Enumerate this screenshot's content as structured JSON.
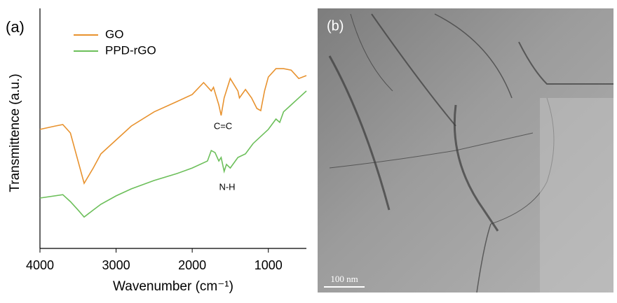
{
  "chart_data": {
    "type": "line",
    "panel_label": "(a)",
    "xlabel": "Wavenumber (cm⁻¹)",
    "ylabel": "Transmittence (a.u.)",
    "xlim": [
      4000,
      500
    ],
    "ylim": [
      0,
      100
    ],
    "xticks": [
      4000,
      3000,
      2000,
      1000
    ],
    "annotations": [
      "C=C",
      "N-H"
    ],
    "series": [
      {
        "name": "GO",
        "color": "#e8922e",
        "x": [
          4000,
          3800,
          3700,
          3600,
          3500,
          3420,
          3300,
          3200,
          3000,
          2800,
          2500,
          2200,
          2000,
          1850,
          1750,
          1720,
          1650,
          1620,
          1580,
          1500,
          1400,
          1380,
          1300,
          1220,
          1150,
          1100,
          1050,
          1000,
          900,
          800,
          700,
          600,
          500
        ],
        "values": [
          49.6,
          51.0,
          51.6,
          48.1,
          36.4,
          27.1,
          33.5,
          39.4,
          45.2,
          51.0,
          56.9,
          61.2,
          64.1,
          69.1,
          65.6,
          67.1,
          59.8,
          55.4,
          62.7,
          70.8,
          65.6,
          62.7,
          66.2,
          62.7,
          58.3,
          57.4,
          65.6,
          71.4,
          74.9,
          74.9,
          74.3,
          70.8,
          72.0
        ]
      },
      {
        "name": "PPD-rGO",
        "color": "#6cbf5a",
        "x": [
          4000,
          3700,
          3600,
          3500,
          3420,
          3300,
          3200,
          3000,
          2800,
          2500,
          2200,
          2000,
          1800,
          1750,
          1700,
          1650,
          1620,
          1580,
          1550,
          1500,
          1400,
          1300,
          1200,
          1000,
          900,
          850,
          800,
          700,
          600,
          500
        ],
        "values": [
          21.0,
          22.4,
          19.5,
          16.0,
          13.1,
          16.0,
          18.4,
          21.9,
          24.8,
          28.3,
          31.2,
          33.5,
          36.4,
          40.8,
          39.9,
          36.4,
          37.9,
          32.1,
          35.0,
          33.5,
          37.9,
          39.4,
          43.7,
          49.6,
          53.9,
          52.5,
          56.9,
          59.8,
          62.7,
          65.6
        ]
      }
    ]
  },
  "image": {
    "panel_label": "(b)",
    "scale_bar": "100 nm"
  }
}
